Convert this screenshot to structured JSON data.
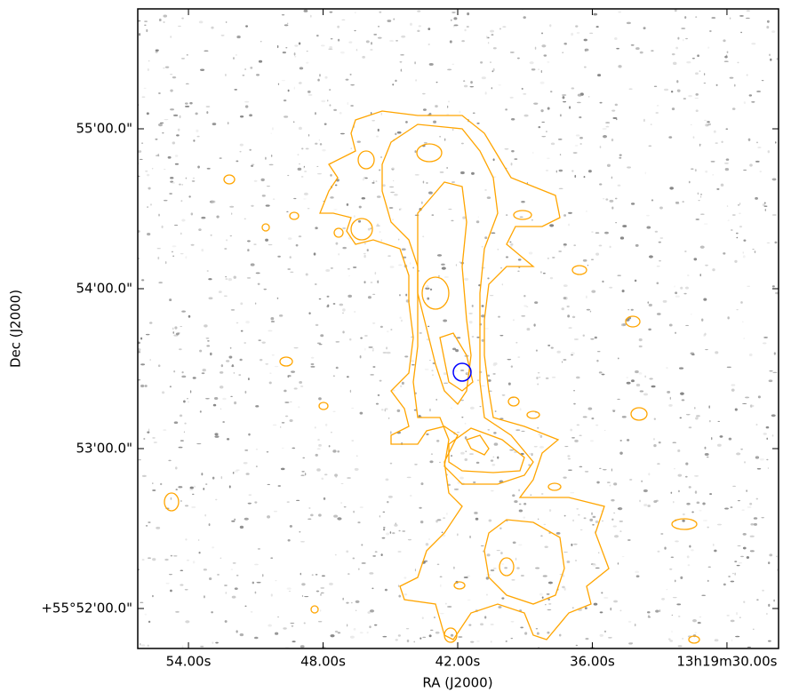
{
  "chart_data": {
    "type": "contour",
    "xlabel": "RA (J2000)",
    "ylabel": "Dec (J2000)",
    "xlim": [
      56.26,
      27.7
    ],
    "ylim": [
      51.75,
      55.75
    ],
    "xticks": [
      {
        "value": 54,
        "label": "54.00s"
      },
      {
        "value": 48,
        "label": "48.00s"
      },
      {
        "value": 42,
        "label": "42.00s"
      },
      {
        "value": 36,
        "label": "36.00s"
      },
      {
        "value": 30,
        "label": "13h19m30.00s"
      }
    ],
    "yticks": [
      {
        "value": 55,
        "label": "55'00.0\""
      },
      {
        "value": 54,
        "label": "54'00.0\""
      },
      {
        "value": 53,
        "label": "53'00.0\""
      },
      {
        "value": 52,
        "label": "+55°52'00.0\""
      }
    ]
  }
}
